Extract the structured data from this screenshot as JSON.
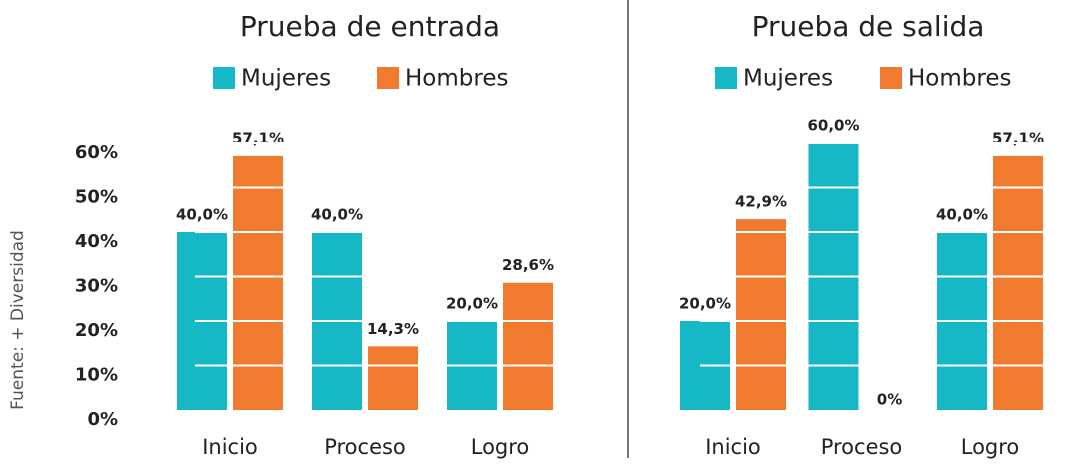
{
  "source": "Fuente: + Diversidad",
  "chart_data": [
    {
      "type": "bar",
      "title": "Prueba de entrada",
      "categories": [
        "Inicio",
        "Proceso",
        "Logro"
      ],
      "series": [
        {
          "name": "Mujeres",
          "color": "#17b8c6",
          "values": [
            40.0,
            40.0,
            20.0
          ],
          "value_labels": [
            "40,0%",
            "40,0%",
            "20,0%"
          ]
        },
        {
          "name": "Hombres",
          "color": "#f07a2e",
          "values": [
            57.1,
            14.3,
            28.6
          ],
          "value_labels": [
            "57,1%",
            "14,3%",
            "28,6%"
          ]
        }
      ],
      "ylim": [
        0,
        60
      ],
      "yticks": [
        {
          "value": 0,
          "label": "0%"
        },
        {
          "value": 10,
          "label": "10%"
        },
        {
          "value": 20,
          "label": "20%"
        },
        {
          "value": 30,
          "label": "30%"
        },
        {
          "value": 40,
          "label": "40%"
        },
        {
          "value": 50,
          "label": "50%"
        },
        {
          "value": 60,
          "label": "60%"
        }
      ]
    },
    {
      "type": "bar",
      "title": "Prueba de salida",
      "categories": [
        "Inicio",
        "Proceso",
        "Logro"
      ],
      "series": [
        {
          "name": "Mujeres",
          "color": "#17b8c6",
          "values": [
            20.0,
            60.0,
            40.0
          ],
          "value_labels": [
            "20,0%",
            "60,0%",
            "40,0%"
          ]
        },
        {
          "name": "Hombres",
          "color": "#f07a2e",
          "values": [
            42.9,
            0,
            57.1
          ],
          "value_labels": [
            "42,9%",
            "0%",
            "57,1%"
          ]
        }
      ],
      "ylim": [
        0,
        60
      ]
    }
  ]
}
